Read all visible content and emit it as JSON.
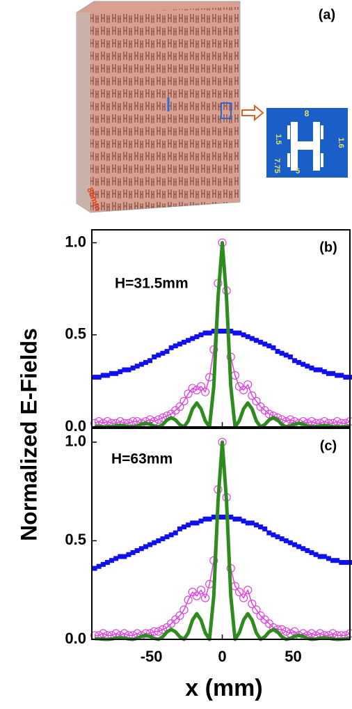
{
  "photo_panel": {
    "label": "(a)",
    "scale_label": "85mm",
    "inset_labels": [
      "8",
      "1.6",
      "1.5",
      "7.75",
      "5"
    ]
  },
  "chart_data": [
    {
      "type": "line",
      "panel_label": "(b)",
      "annotation": "H=31.5mm",
      "ylabel": "Normalized E-Fields",
      "x": [
        -90,
        -87,
        -84,
        -81,
        -78,
        -75,
        -72,
        -69,
        -66,
        -63,
        -60,
        -57,
        -54,
        -51,
        -48,
        -45,
        -42,
        -39,
        -36,
        -33,
        -30,
        -27,
        -24,
        -21,
        -18,
        -15,
        -12,
        -9,
        -6,
        -3,
        0,
        3,
        6,
        9,
        12,
        15,
        18,
        21,
        24,
        27,
        30,
        33,
        36,
        39,
        42,
        45,
        48,
        51,
        54,
        57,
        60,
        63,
        66,
        69,
        72,
        75,
        78,
        81,
        84,
        87,
        90
      ],
      "xlim": [
        -92,
        90
      ],
      "xticks": [
        -50,
        0,
        50
      ],
      "ylim": [
        0,
        1.07
      ],
      "yticks": [
        {
          "value": 0,
          "label": "0.0"
        },
        {
          "value": 0.5,
          "label": "0.5"
        },
        {
          "value": 1,
          "label": "1.0"
        }
      ],
      "series": [
        {
          "style": "square",
          "color": "#1010ee",
          "values": [
            0.27,
            0.27,
            0.28,
            0.28,
            0.29,
            0.29,
            0.3,
            0.31,
            0.31,
            0.32,
            0.33,
            0.34,
            0.35,
            0.36,
            0.38,
            0.39,
            0.4,
            0.41,
            0.43,
            0.44,
            0.45,
            0.46,
            0.47,
            0.48,
            0.49,
            0.5,
            0.51,
            0.51,
            0.52,
            0.52,
            0.52,
            0.52,
            0.52,
            0.51,
            0.51,
            0.5,
            0.49,
            0.48,
            0.47,
            0.46,
            0.45,
            0.44,
            0.43,
            0.41,
            0.4,
            0.39,
            0.38,
            0.36,
            0.35,
            0.34,
            0.33,
            0.32,
            0.31,
            0.31,
            0.3,
            0.29,
            0.29,
            0.28,
            0.28,
            0.27,
            0.27
          ]
        },
        {
          "style": "circle-line",
          "color": "#e040e0",
          "values": [
            0.02,
            0.03,
            0.02,
            0.03,
            0.02,
            0.02,
            0.03,
            0.02,
            0.02,
            0.03,
            0.03,
            0.02,
            0.03,
            0.04,
            0.03,
            0.04,
            0.05,
            0.06,
            0.07,
            0.09,
            0.11,
            0.14,
            0.18,
            0.21,
            0.2,
            0.22,
            0.19,
            0.27,
            0.42,
            0.78,
            1.0,
            0.74,
            0.38,
            0.28,
            0.22,
            0.2,
            0.23,
            0.17,
            0.14,
            0.11,
            0.09,
            0.07,
            0.06,
            0.05,
            0.04,
            0.03,
            0.04,
            0.03,
            0.02,
            0.03,
            0.02,
            0.03,
            0.02,
            0.02,
            0.03,
            0.02,
            0.02,
            0.03,
            0.02,
            0.02,
            0.03
          ]
        },
        {
          "style": "line",
          "color": "#2e8b1e",
          "values": [
            0.004,
            0.003,
            0.001,
            0,
            0.002,
            0.006,
            0.008,
            0.006,
            0.002,
            0,
            0.005,
            0.015,
            0.02,
            0.015,
            0.005,
            0,
            0.013,
            0.038,
            0.05,
            0.038,
            0.013,
            0,
            0.033,
            0.098,
            0.13,
            0.098,
            0.033,
            0,
            0.22,
            0.7,
            1,
            0.7,
            0.22,
            0,
            0.033,
            0.098,
            0.13,
            0.098,
            0.033,
            0,
            0.013,
            0.038,
            0.05,
            0.038,
            0.013,
            0,
            0.005,
            0.015,
            0.02,
            0.015,
            0.005,
            0,
            0.002,
            0.006,
            0.008,
            0.006,
            0.002,
            0,
            0.001,
            0.003,
            0.004
          ]
        }
      ]
    },
    {
      "type": "line",
      "panel_label": "(c)",
      "annotation": "H=63mm",
      "xlabel": "x (mm)",
      "x": [
        -90,
        -87,
        -84,
        -81,
        -78,
        -75,
        -72,
        -69,
        -66,
        -63,
        -60,
        -57,
        -54,
        -51,
        -48,
        -45,
        -42,
        -39,
        -36,
        -33,
        -30,
        -27,
        -24,
        -21,
        -18,
        -15,
        -12,
        -9,
        -6,
        -3,
        0,
        3,
        6,
        9,
        12,
        15,
        18,
        21,
        24,
        27,
        30,
        33,
        36,
        39,
        42,
        45,
        48,
        51,
        54,
        57,
        60,
        63,
        66,
        69,
        72,
        75,
        78,
        81,
        84,
        87,
        90
      ],
      "xlim": [
        -92,
        90
      ],
      "xticks": [
        -50,
        0,
        50
      ],
      "ylim": [
        0,
        1.07
      ],
      "yticks": [
        {
          "value": 0,
          "label": "0.0"
        },
        {
          "value": 0.5,
          "label": "0.5"
        },
        {
          "value": 1,
          "label": "1.0"
        }
      ],
      "series": [
        {
          "style": "square",
          "color": "#1010ee",
          "values": [
            0.36,
            0.37,
            0.38,
            0.39,
            0.4,
            0.41,
            0.42,
            0.42,
            0.43,
            0.44,
            0.45,
            0.46,
            0.47,
            0.48,
            0.49,
            0.5,
            0.51,
            0.52,
            0.53,
            0.54,
            0.56,
            0.57,
            0.58,
            0.59,
            0.59,
            0.6,
            0.61,
            0.61,
            0.62,
            0.62,
            0.62,
            0.62,
            0.62,
            0.61,
            0.61,
            0.6,
            0.59,
            0.59,
            0.58,
            0.57,
            0.56,
            0.54,
            0.53,
            0.52,
            0.51,
            0.5,
            0.49,
            0.48,
            0.47,
            0.46,
            0.45,
            0.44,
            0.43,
            0.42,
            0.42,
            0.41,
            0.4,
            0.4,
            0.39,
            0.39,
            0.39
          ]
        },
        {
          "style": "circle-line",
          "color": "#e040e0",
          "values": [
            0.02,
            0.02,
            0.03,
            0.02,
            0.02,
            0.03,
            0.02,
            0.03,
            0.02,
            0.02,
            0.03,
            0.02,
            0.03,
            0.03,
            0.04,
            0.04,
            0.05,
            0.06,
            0.08,
            0.1,
            0.12,
            0.15,
            0.2,
            0.24,
            0.22,
            0.25,
            0.21,
            0.28,
            0.4,
            0.76,
            1.0,
            0.72,
            0.36,
            0.27,
            0.24,
            0.21,
            0.25,
            0.18,
            0.15,
            0.12,
            0.1,
            0.08,
            0.06,
            0.05,
            0.05,
            0.04,
            0.03,
            0.04,
            0.02,
            0.03,
            0.02,
            0.03,
            0.02,
            0.03,
            0.02,
            0.02,
            0.03,
            0.02,
            0.02,
            0.02,
            0.03
          ]
        },
        {
          "style": "line",
          "color": "#2e8b1e",
          "values": [
            0.004,
            0.003,
            0.001,
            0,
            0.002,
            0.006,
            0.008,
            0.006,
            0.002,
            0,
            0.005,
            0.015,
            0.02,
            0.015,
            0.005,
            0,
            0.013,
            0.038,
            0.05,
            0.038,
            0.013,
            0,
            0.033,
            0.098,
            0.13,
            0.098,
            0.033,
            0,
            0.22,
            0.7,
            1,
            0.7,
            0.22,
            0,
            0.033,
            0.098,
            0.13,
            0.098,
            0.033,
            0,
            0.013,
            0.038,
            0.05,
            0.038,
            0.013,
            0,
            0.005,
            0.015,
            0.02,
            0.015,
            0.005,
            0,
            0.002,
            0.006,
            0.008,
            0.006,
            0.002,
            0,
            0.001,
            0.003,
            0.004
          ]
        }
      ]
    }
  ]
}
